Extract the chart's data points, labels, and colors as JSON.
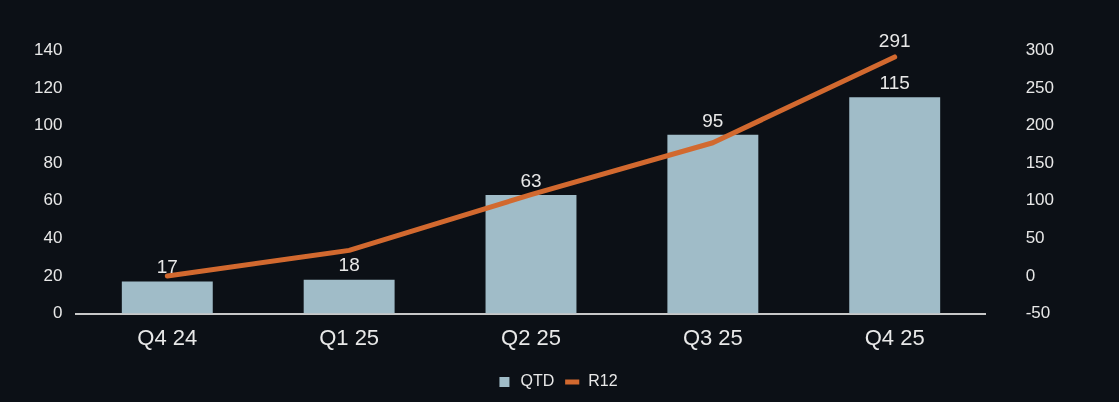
{
  "chart_data": {
    "type": "bar",
    "categories": [
      "Q4 24",
      "Q1 25",
      "Q2 25",
      "Q3 25",
      "Q4 25"
    ],
    "series": [
      {
        "name": "QTD",
        "color": "#a0bcc8",
        "values": [
          17,
          18,
          63,
          95,
          115
        ],
        "value_labels": [
          "17",
          "18",
          "63",
          "95",
          "115"
        ]
      },
      {
        "name": "R12",
        "type": "line",
        "axis": "y2",
        "color": "#d2692f",
        "values": [
          0,
          34,
          108,
          177,
          291
        ],
        "value_labels": [
          null,
          null,
          null,
          null,
          "291"
        ]
      }
    ],
    "ylim": [
      0,
      140
    ],
    "yticks": [
      0,
      20,
      40,
      60,
      80,
      100,
      120,
      140
    ],
    "y2lim": [
      -50,
      300
    ],
    "y2ticks": [
      -50,
      0,
      50,
      100,
      150,
      200,
      250,
      300
    ],
    "grid": false,
    "legend": "bottom",
    "marker": "none",
    "line_style": "solid"
  }
}
